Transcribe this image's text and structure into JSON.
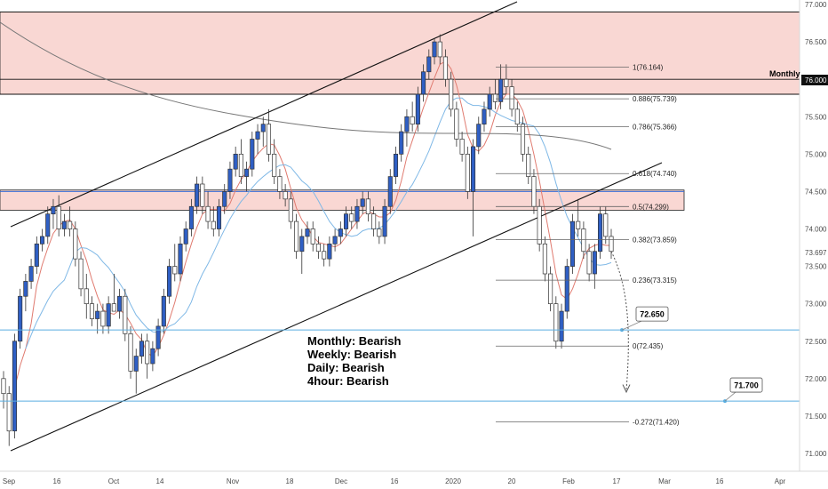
{
  "chart_data": {
    "type": "candlestick",
    "instrument_note": "",
    "y_axis": {
      "ticks": [
        "77.000",
        "76.500",
        "76.000",
        "75.500",
        "75.000",
        "74.500",
        "74.000",
        "73.500",
        "73.000",
        "72.500",
        "72.000",
        "71.500",
        "71.000"
      ],
      "ylim": [
        70.8,
        77.1
      ],
      "last_price": "73.697",
      "monthly_level": "76.000",
      "monthly_label": "Monthly"
    },
    "x_axis": {
      "labels": [
        "Sep",
        "16",
        "Oct",
        "14",
        "Nov",
        "18",
        "Dec",
        "16",
        "2020",
        "20",
        "Feb",
        "17",
        "Mar",
        "16",
        "Apr"
      ]
    },
    "zones": [
      {
        "from": 75.8,
        "to": 76.9,
        "color": "#f7c9c4"
      },
      {
        "from": 74.25,
        "to": 74.52,
        "color": "#f7c9c4"
      }
    ],
    "fibonacci": [
      {
        "ratio": "1(76.164)",
        "price": 76.164
      },
      {
        "ratio": "0.886(75.739)",
        "price": 75.739
      },
      {
        "ratio": "0.786(75.366)",
        "price": 75.366
      },
      {
        "ratio": "0.618(74.740)",
        "price": 74.74
      },
      {
        "ratio": "0.5(74.299)",
        "price": 74.299
      },
      {
        "ratio": "0.382(73.859)",
        "price": 73.859
      },
      {
        "ratio": "0.236(73.315)",
        "price": 73.315
      },
      {
        "ratio": "0(72.435)",
        "price": 72.435
      },
      {
        "ratio": "-0.272(71.420)",
        "price": 71.42
      }
    ],
    "targets": [
      {
        "label": "72.650",
        "price": 72.65
      },
      {
        "label": "71.700",
        "price": 71.7
      }
    ],
    "bias": [
      "Monthly: Bearish",
      "Weekly: Bearish",
      "Daily: Bearish",
      "4hour: Bearish"
    ],
    "candles": [
      [
        72.0,
        72.1,
        71.6,
        71.8
      ],
      [
        71.8,
        71.9,
        71.1,
        71.3
      ],
      [
        71.3,
        72.6,
        71.2,
        72.5
      ],
      [
        72.5,
        73.2,
        72.4,
        73.1
      ],
      [
        73.1,
        73.4,
        72.9,
        73.3
      ],
      [
        73.3,
        73.6,
        73.2,
        73.5
      ],
      [
        73.5,
        73.9,
        73.4,
        73.8
      ],
      [
        73.8,
        74.0,
        73.7,
        73.9
      ],
      [
        73.9,
        74.3,
        73.8,
        74.2
      ],
      [
        74.2,
        74.4,
        74.0,
        74.3
      ],
      [
        74.3,
        74.45,
        73.9,
        74.0
      ],
      [
        74.0,
        74.2,
        73.9,
        74.1
      ],
      [
        74.1,
        74.3,
        73.9,
        74.0
      ],
      [
        74.0,
        74.1,
        73.5,
        73.6
      ],
      [
        73.6,
        73.7,
        73.1,
        73.2
      ],
      [
        73.2,
        73.4,
        72.8,
        73.0
      ],
      [
        73.0,
        73.1,
        72.7,
        72.8
      ],
      [
        72.8,
        73.0,
        72.6,
        72.9
      ],
      [
        72.9,
        73.0,
        72.6,
        72.7
      ],
      [
        72.7,
        73.1,
        72.6,
        73.0
      ],
      [
        73.0,
        73.4,
        72.9,
        72.9
      ],
      [
        72.9,
        73.2,
        72.8,
        73.1
      ],
      [
        73.1,
        73.2,
        72.5,
        72.6
      ],
      [
        72.6,
        72.7,
        72.0,
        72.1
      ],
      [
        72.1,
        72.4,
        71.8,
        72.3
      ],
      [
        72.3,
        72.6,
        72.2,
        72.5
      ],
      [
        72.5,
        72.6,
        72.0,
        72.2
      ],
      [
        72.2,
        72.5,
        72.1,
        72.4
      ],
      [
        72.4,
        72.8,
        72.3,
        72.7
      ],
      [
        72.7,
        73.2,
        72.6,
        73.1
      ],
      [
        73.1,
        73.6,
        73.0,
        73.5
      ],
      [
        73.5,
        73.8,
        73.3,
        73.4
      ],
      [
        73.4,
        73.9,
        73.3,
        73.8
      ],
      [
        73.8,
        74.1,
        73.7,
        74.0
      ],
      [
        74.0,
        74.4,
        73.9,
        74.3
      ],
      [
        74.3,
        74.7,
        74.2,
        74.6
      ],
      [
        74.6,
        74.7,
        74.2,
        74.3
      ],
      [
        74.3,
        74.5,
        74.0,
        74.1
      ],
      [
        74.1,
        74.3,
        73.9,
        74.0
      ],
      [
        74.0,
        74.4,
        73.9,
        74.3
      ],
      [
        74.3,
        74.6,
        74.2,
        74.5
      ],
      [
        74.5,
        74.9,
        74.4,
        74.8
      ],
      [
        74.8,
        75.1,
        74.7,
        75.0
      ],
      [
        75.0,
        75.2,
        74.6,
        74.7
      ],
      [
        74.7,
        74.9,
        74.5,
        74.8
      ],
      [
        74.8,
        75.3,
        74.7,
        75.2
      ],
      [
        75.2,
        75.4,
        75.0,
        75.3
      ],
      [
        75.3,
        75.5,
        75.1,
        75.4
      ],
      [
        75.4,
        75.6,
        74.9,
        75.0
      ],
      [
        75.0,
        75.2,
        74.6,
        74.7
      ],
      [
        74.7,
        74.8,
        74.4,
        74.5
      ],
      [
        74.5,
        74.6,
        74.3,
        74.4
      ],
      [
        74.4,
        74.5,
        74.0,
        74.1
      ],
      [
        74.1,
        74.2,
        73.6,
        73.7
      ],
      [
        73.7,
        74.0,
        73.4,
        73.9
      ],
      [
        73.9,
        74.1,
        73.8,
        74.0
      ],
      [
        74.0,
        74.1,
        73.7,
        73.8
      ],
      [
        73.8,
        73.9,
        73.6,
        73.7
      ],
      [
        73.7,
        73.8,
        73.5,
        73.6
      ],
      [
        73.6,
        73.9,
        73.5,
        73.8
      ],
      [
        73.8,
        74.0,
        73.7,
        73.9
      ],
      [
        73.9,
        74.1,
        73.8,
        74.0
      ],
      [
        74.0,
        74.3,
        73.9,
        74.2
      ],
      [
        74.2,
        74.3,
        74.0,
        74.1
      ],
      [
        74.1,
        74.4,
        74.0,
        74.3
      ],
      [
        74.3,
        74.5,
        74.2,
        74.4
      ],
      [
        74.4,
        74.5,
        74.1,
        74.2
      ],
      [
        74.2,
        74.3,
        73.9,
        74.0
      ],
      [
        74.0,
        74.1,
        73.8,
        73.9
      ],
      [
        73.9,
        74.4,
        73.8,
        74.3
      ],
      [
        74.3,
        74.8,
        74.2,
        74.7
      ],
      [
        74.7,
        75.1,
        74.6,
        75.0
      ],
      [
        75.0,
        75.4,
        74.9,
        75.3
      ],
      [
        75.3,
        75.6,
        75.1,
        75.5
      ],
      [
        75.5,
        75.7,
        75.3,
        75.4
      ],
      [
        75.4,
        75.9,
        75.3,
        75.8
      ],
      [
        75.8,
        76.2,
        75.7,
        76.1
      ],
      [
        76.1,
        76.4,
        76.0,
        76.3
      ],
      [
        76.3,
        76.55,
        76.2,
        76.5
      ],
      [
        76.5,
        76.6,
        76.2,
        76.3
      ],
      [
        76.3,
        76.4,
        75.9,
        76.0
      ],
      [
        76.0,
        76.1,
        75.5,
        75.6
      ],
      [
        75.6,
        75.7,
        75.1,
        75.2
      ],
      [
        75.2,
        75.3,
        74.9,
        75.0
      ],
      [
        75.0,
        75.1,
        74.4,
        74.5
      ],
      [
        74.5,
        75.2,
        73.9,
        75.1
      ],
      [
        75.1,
        75.5,
        75.0,
        75.4
      ],
      [
        75.4,
        75.7,
        75.3,
        75.6
      ],
      [
        75.6,
        75.9,
        75.5,
        75.8
      ],
      [
        75.8,
        76.0,
        75.6,
        75.7
      ],
      [
        75.7,
        76.2,
        75.6,
        76.0
      ],
      [
        76.0,
        76.2,
        75.8,
        75.9
      ],
      [
        75.9,
        76.0,
        75.5,
        75.6
      ],
      [
        75.6,
        75.7,
        75.3,
        75.4
      ],
      [
        75.4,
        75.5,
        74.9,
        75.0
      ],
      [
        75.0,
        75.1,
        74.6,
        74.7
      ],
      [
        74.7,
        74.8,
        74.2,
        74.3
      ],
      [
        74.3,
        74.4,
        73.7,
        73.8
      ],
      [
        73.8,
        73.9,
        73.3,
        73.4
      ],
      [
        73.4,
        73.5,
        72.9,
        73.0
      ],
      [
        73.0,
        73.1,
        72.4,
        72.5
      ],
      [
        72.5,
        73.0,
        72.4,
        72.9
      ],
      [
        72.9,
        73.6,
        72.8,
        73.5
      ],
      [
        73.5,
        74.2,
        73.4,
        74.1
      ],
      [
        74.1,
        74.4,
        73.9,
        74.0
      ],
      [
        74.0,
        74.1,
        73.6,
        73.7
      ],
      [
        73.7,
        73.8,
        73.3,
        73.4
      ],
      [
        73.4,
        73.8,
        73.2,
        73.7
      ],
      [
        73.7,
        74.3,
        73.6,
        74.2
      ],
      [
        74.2,
        74.3,
        73.8,
        73.9
      ],
      [
        73.9,
        74.0,
        73.6,
        73.7
      ]
    ]
  }
}
